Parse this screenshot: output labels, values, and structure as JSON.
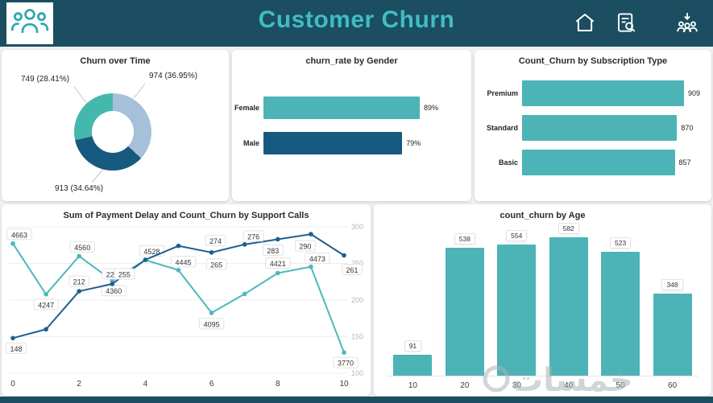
{
  "page": {
    "background": "#eef0f2",
    "header_bg": "#1a4e60",
    "title_color": "#41bcc2",
    "teal": "#4cb3b6",
    "dark_blue": "#17597f",
    "light_blue": "#a5c0d8"
  },
  "header": {
    "title": "Customer Churn",
    "icons": [
      "people-logo-icon",
      "home-icon",
      "report-search-icon",
      "share-people-icon"
    ]
  },
  "watermark": {
    "text": "خمسات"
  },
  "chart_data": [
    {
      "id": "churn-over-time",
      "type": "pie",
      "title": "Churn over Time",
      "slices": [
        {
          "value": 974,
          "pct": 36.95,
          "label": "974 (36.95%)",
          "color": "#a5c0d8"
        },
        {
          "value": 913,
          "pct": 34.64,
          "label": "913 (34.64%)",
          "color": "#17597f"
        },
        {
          "value": 749,
          "pct": 28.41,
          "label": "749 (28.41%)",
          "color": "#45b8ad"
        }
      ]
    },
    {
      "id": "churn-rate-by-gender",
      "type": "bar",
      "orientation": "horizontal",
      "title": "churn_rate by Gender",
      "categories": [
        "Female",
        "Male"
      ],
      "values": [
        89,
        79
      ],
      "value_labels": [
        "89%",
        "79%"
      ],
      "colors": [
        "#4cb3b6",
        "#17597f"
      ],
      "xlim": [
        0,
        100
      ]
    },
    {
      "id": "count-churn-by-subscription-type",
      "type": "bar",
      "orientation": "horizontal",
      "title": "Count_Churn by Subscription Type",
      "categories": [
        "Premium",
        "Standard",
        "Basic"
      ],
      "values": [
        909,
        870,
        857
      ],
      "value_labels": [
        "909",
        "870",
        "857"
      ],
      "color": "#4cb3b6"
    },
    {
      "id": "payment-delay-and-count-churn-by-support-calls",
      "type": "line",
      "title": "Sum of Payment Delay and Count_Churn by Support Calls",
      "x": [
        0,
        1,
        2,
        3,
        4,
        5,
        6,
        7,
        8,
        9,
        10
      ],
      "x_ticks": [
        0,
        2,
        4,
        6,
        8,
        10
      ],
      "right_axis": {
        "min": 100,
        "max": 300,
        "ticks": [
          300,
          250,
          200,
          150,
          100
        ]
      },
      "left_axis_estimate": {
        "min": 3600,
        "max": 4800,
        "visible": false
      },
      "series": [
        {
          "name": "Sum of Payment Delay",
          "color": "#4cb8bd",
          "axis": "left",
          "values": [
            4663,
            4247,
            4560,
            4360,
            4528,
            4445,
            4095,
            4250,
            4421,
            4473,
            3770
          ],
          "labels": [
            "4663",
            "4247",
            "4560",
            "4360",
            "4528",
            "4445",
            "4095",
            "",
            "4421",
            "4473",
            "3770"
          ]
        },
        {
          "name": "Count_Churn",
          "color": "#1e5f8e",
          "axis": "right",
          "values": [
            148,
            160,
            212,
            222,
            255,
            274,
            265,
            276,
            283,
            290,
            261
          ],
          "labels": [
            "148",
            "",
            "212",
            "222",
            "255",
            "274",
            "265",
            "276",
            "283",
            "290",
            "261"
          ]
        }
      ]
    },
    {
      "id": "count-churn-by-age",
      "type": "bar",
      "orientation": "vertical",
      "title": "count_churn by Age",
      "categories": [
        "10",
        "20",
        "30",
        "40",
        "50",
        "60"
      ],
      "values": [
        91,
        538,
        554,
        582,
        523,
        348
      ],
      "value_labels": [
        "91",
        "538",
        "554",
        "582",
        "523",
        "348"
      ],
      "color": "#4cb3b6",
      "ylim_estimate": [
        0,
        600
      ]
    }
  ]
}
